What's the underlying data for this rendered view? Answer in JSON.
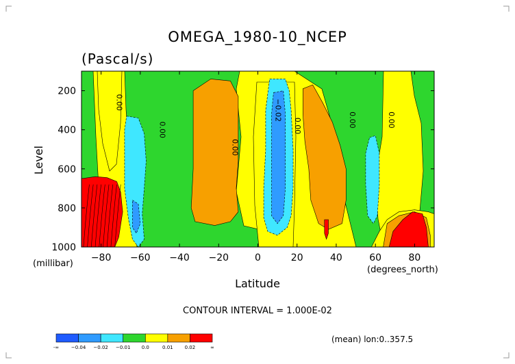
{
  "title": "OMEGA_1980-10_NCEP",
  "units": "(Pascal/s)",
  "contour_interval": "CONTOUR INTERVAL = 1.000E-02",
  "mean_note": "(mean) lon:0..357.5",
  "axis": {
    "ylabel": "Level",
    "yunit": "(millibar)",
    "xlabel": "Latitude",
    "xunit": "(degrees_north)"
  },
  "colors": {
    "-inf_-0.04": "#1f5bff",
    "-0.04_-0.02": "#2f9bff",
    "-0.02_-0.01": "#3fe7ff",
    "-0.01_0.0": "#2ed62e",
    "0.0_0.01": "#ffff00",
    "0.01_0.02": "#f7a000",
    "0.02_inf": "#ff0000"
  },
  "chart_data": {
    "type": "heatmap",
    "title": "OMEGA_1980-10_NCEP",
    "subtitle": "(Pascal/s)",
    "xlabel": "Latitude",
    "ylabel": "Level",
    "xlim": [
      -90,
      90
    ],
    "ylim": [
      1000,
      100
    ],
    "xticks": [
      {
        "v": -80,
        "label": "−80"
      },
      {
        "v": -60,
        "label": "−60"
      },
      {
        "v": -40,
        "label": "−40"
      },
      {
        "v": -20,
        "label": "−20"
      },
      {
        "v": 0,
        "label": "0"
      },
      {
        "v": 20,
        "label": "20"
      },
      {
        "v": 40,
        "label": "40"
      },
      {
        "v": 60,
        "label": "60"
      },
      {
        "v": 80,
        "label": "80"
      }
    ],
    "yticks": [
      {
        "v": 200,
        "label": "200"
      },
      {
        "v": 400,
        "label": "400"
      },
      {
        "v": 600,
        "label": "600"
      },
      {
        "v": 800,
        "label": "800"
      },
      {
        "v": 1000,
        "label": "1000"
      }
    ],
    "contour_labels": [
      {
        "lat": -72,
        "lev": 260,
        "text": "0.00"
      },
      {
        "lat": -50,
        "lev": 400,
        "text": "0.00"
      },
      {
        "lat": -13,
        "lev": 490,
        "text": "0.00"
      },
      {
        "lat": 9,
        "lev": 300,
        "text": "−0.02"
      },
      {
        "lat": 19,
        "lev": 380,
        "text": "0.00"
      },
      {
        "lat": 47,
        "lev": 350,
        "text": "0.00"
      },
      {
        "lat": 67,
        "lev": 350,
        "text": "0.00"
      }
    ],
    "colorbar": {
      "levels": [
        "-∞",
        "−0.04",
        "−0.02",
        "−0.01",
        "0.0",
        "0.01",
        "0.02",
        "∞"
      ],
      "colors": [
        "#1f5bff",
        "#2f9bff",
        "#3fe7ff",
        "#2ed62e",
        "#ffff00",
        "#f7a000",
        "#ff0000"
      ]
    },
    "regions": [
      {
        "value_range": "-0.02_-0.01",
        "pts": [
          [
            -67,
            330
          ],
          [
            -61,
            340
          ],
          [
            -58,
            420
          ],
          [
            -57,
            560
          ],
          [
            -58,
            700
          ],
          [
            -59,
            830
          ],
          [
            -58,
            960
          ],
          [
            -61,
            1000
          ],
          [
            -64,
            960
          ],
          [
            -66,
            860
          ],
          [
            -68,
            700
          ],
          [
            -68,
            520
          ],
          [
            -68,
            400
          ]
        ]
      },
      {
        "value_range": "-0.04_-0.02",
        "pts": [
          [
            -64,
            760
          ],
          [
            -61,
            780
          ],
          [
            -60,
            880
          ],
          [
            -62,
            930
          ],
          [
            -64,
            900
          ]
        ]
      },
      {
        "value_range": "0.01_0.02",
        "pts": [
          [
            -33,
            200
          ],
          [
            -24,
            140
          ],
          [
            -14,
            150
          ],
          [
            -10,
            230
          ],
          [
            -10,
            400
          ],
          [
            -10,
            560
          ],
          [
            -11,
            700
          ],
          [
            -10,
            820
          ],
          [
            -14,
            870
          ],
          [
            -22,
            890
          ],
          [
            -32,
            870
          ],
          [
            -34,
            800
          ],
          [
            -33,
            600
          ],
          [
            -33,
            400
          ]
        ]
      },
      {
        "value_range": "-0.02_-0.01",
        "pts": [
          [
            6,
            140
          ],
          [
            14,
            140
          ],
          [
            16,
            200
          ],
          [
            17,
            300
          ],
          [
            18,
            500
          ],
          [
            18,
            700
          ],
          [
            17,
            840
          ],
          [
            15,
            900
          ],
          [
            10,
            940
          ],
          [
            5,
            920
          ],
          [
            3,
            850
          ],
          [
            3,
            700
          ],
          [
            4,
            500
          ],
          [
            4,
            300
          ]
        ]
      },
      {
        "value_range": "-0.04_-0.02",
        "pts": [
          [
            8,
            210
          ],
          [
            13,
            200
          ],
          [
            14,
            320
          ],
          [
            14,
            520
          ],
          [
            14,
            700
          ],
          [
            13,
            840
          ],
          [
            10,
            880
          ],
          [
            7,
            840
          ],
          [
            7,
            650
          ],
          [
            7,
            480
          ],
          [
            7,
            320
          ]
        ]
      },
      {
        "value_range": "0.01_0.02",
        "pts": [
          [
            23,
            190
          ],
          [
            28,
            170
          ],
          [
            33,
            260
          ],
          [
            38,
            360
          ],
          [
            42,
            480
          ],
          [
            45,
            600
          ],
          [
            45,
            760
          ],
          [
            43,
            880
          ],
          [
            36,
            910
          ],
          [
            31,
            880
          ],
          [
            27,
            760
          ],
          [
            26,
            600
          ],
          [
            24,
            460
          ],
          [
            23,
            320
          ]
        ]
      },
      {
        "value_range": "0.02_inf",
        "pts": [
          [
            34,
            860
          ],
          [
            36,
            860
          ],
          [
            36,
            930
          ],
          [
            35,
            960
          ],
          [
            34,
            930
          ]
        ]
      },
      {
        "value_range": "-0.02_-0.01",
        "pts": [
          [
            57,
            440
          ],
          [
            60,
            430
          ],
          [
            62,
            520
          ],
          [
            62,
            680
          ],
          [
            61,
            840
          ],
          [
            59,
            880
          ],
          [
            56,
            840
          ],
          [
            55,
            680
          ],
          [
            55,
            520
          ]
        ]
      },
      {
        "value_range": "0.0_0.01",
        "pts": [
          [
            58,
            1000
          ],
          [
            62,
            920
          ],
          [
            66,
            860
          ],
          [
            72,
            820
          ],
          [
            80,
            810
          ],
          [
            87,
            820
          ],
          [
            90,
            830
          ],
          [
            90,
            1000
          ]
        ]
      },
      {
        "value_range": "0.01_0.02",
        "pts": [
          [
            64,
            1000
          ],
          [
            66,
            880
          ],
          [
            72,
            840
          ],
          [
            80,
            820
          ],
          [
            86,
            850
          ],
          [
            88,
            940
          ],
          [
            88,
            1000
          ]
        ]
      },
      {
        "value_range": "0.02_inf",
        "pts": [
          [
            67,
            1000
          ],
          [
            69,
            920
          ],
          [
            74,
            860
          ],
          [
            79,
            820
          ],
          [
            84,
            830
          ],
          [
            86,
            900
          ],
          [
            87,
            1000
          ]
        ]
      },
      {
        "value_range": "0.02_inf",
        "pts": [
          [
            -90,
            650
          ],
          [
            -83,
            640
          ],
          [
            -77,
            645
          ],
          [
            -72,
            665
          ],
          [
            -70,
            720
          ],
          [
            -69,
            820
          ],
          [
            -71,
            950
          ],
          [
            -73,
            1000
          ],
          [
            -90,
            1000
          ]
        ]
      }
    ]
  }
}
